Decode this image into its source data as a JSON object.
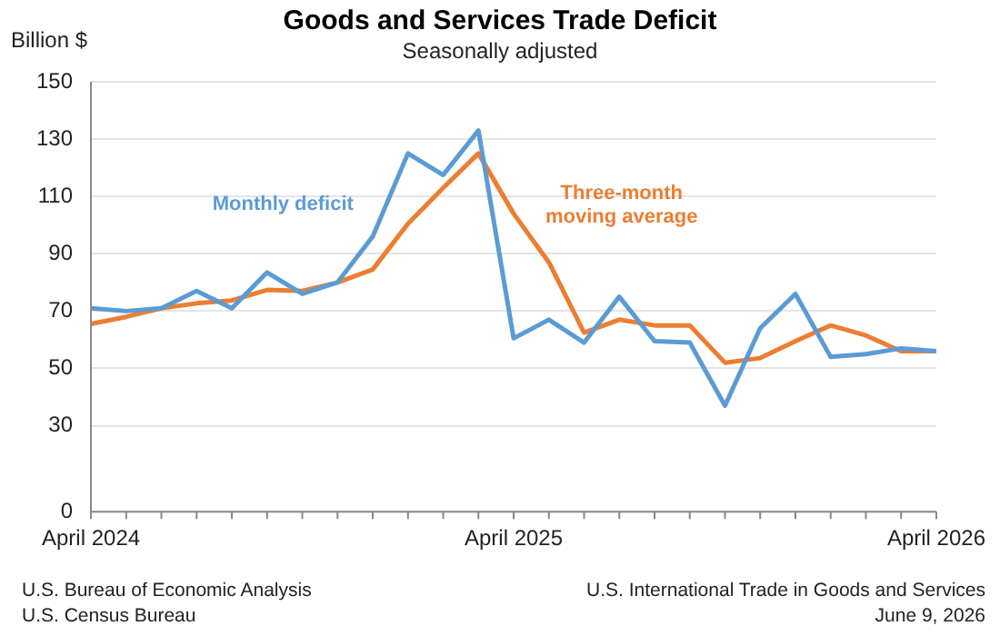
{
  "chart_data": {
    "type": "line",
    "title": "Goods and Services Trade Deficit",
    "subtitle": "Seasonally adjusted",
    "ylabel": "Billion $",
    "categories": [
      "April 2024",
      null,
      null,
      null,
      null,
      null,
      null,
      null,
      null,
      null,
      null,
      null,
      "April 2025",
      null,
      null,
      null,
      null,
      null,
      null,
      null,
      null,
      null,
      null,
      null,
      "April 2026"
    ],
    "series": [
      {
        "name": "Monthly deficit",
        "color": "#5b9bd5",
        "values": [
          71,
          70,
          71,
          77,
          71,
          83.5,
          76,
          80,
          96,
          125,
          117.5,
          133,
          60.5,
          67,
          59,
          75,
          59.5,
          59,
          37,
          64,
          76,
          54,
          55,
          57,
          56
        ]
      },
      {
        "name": "Three-month moving average",
        "color": "#ed7d31",
        "values": [
          65.5,
          68,
          71,
          72.7,
          73.7,
          77.4,
          77,
          80,
          84.5,
          100.5,
          113,
          125,
          104,
          87,
          62.5,
          67,
          65,
          65,
          52,
          53.6,
          59.5,
          65,
          61.5,
          56,
          56
        ]
      }
    ],
    "ylim": [
      0,
      150
    ],
    "yticks": [
      0,
      30,
      50,
      70,
      90,
      110,
      130,
      150
    ],
    "grid": "y",
    "legend": false,
    "marker": "none",
    "line_style": "solid",
    "annotations": [
      "U.S. Bureau of Economic Analysis",
      "U.S. Census Bureau",
      "U.S. International Trade in Goods and Services",
      "June 9, 2026"
    ]
  }
}
